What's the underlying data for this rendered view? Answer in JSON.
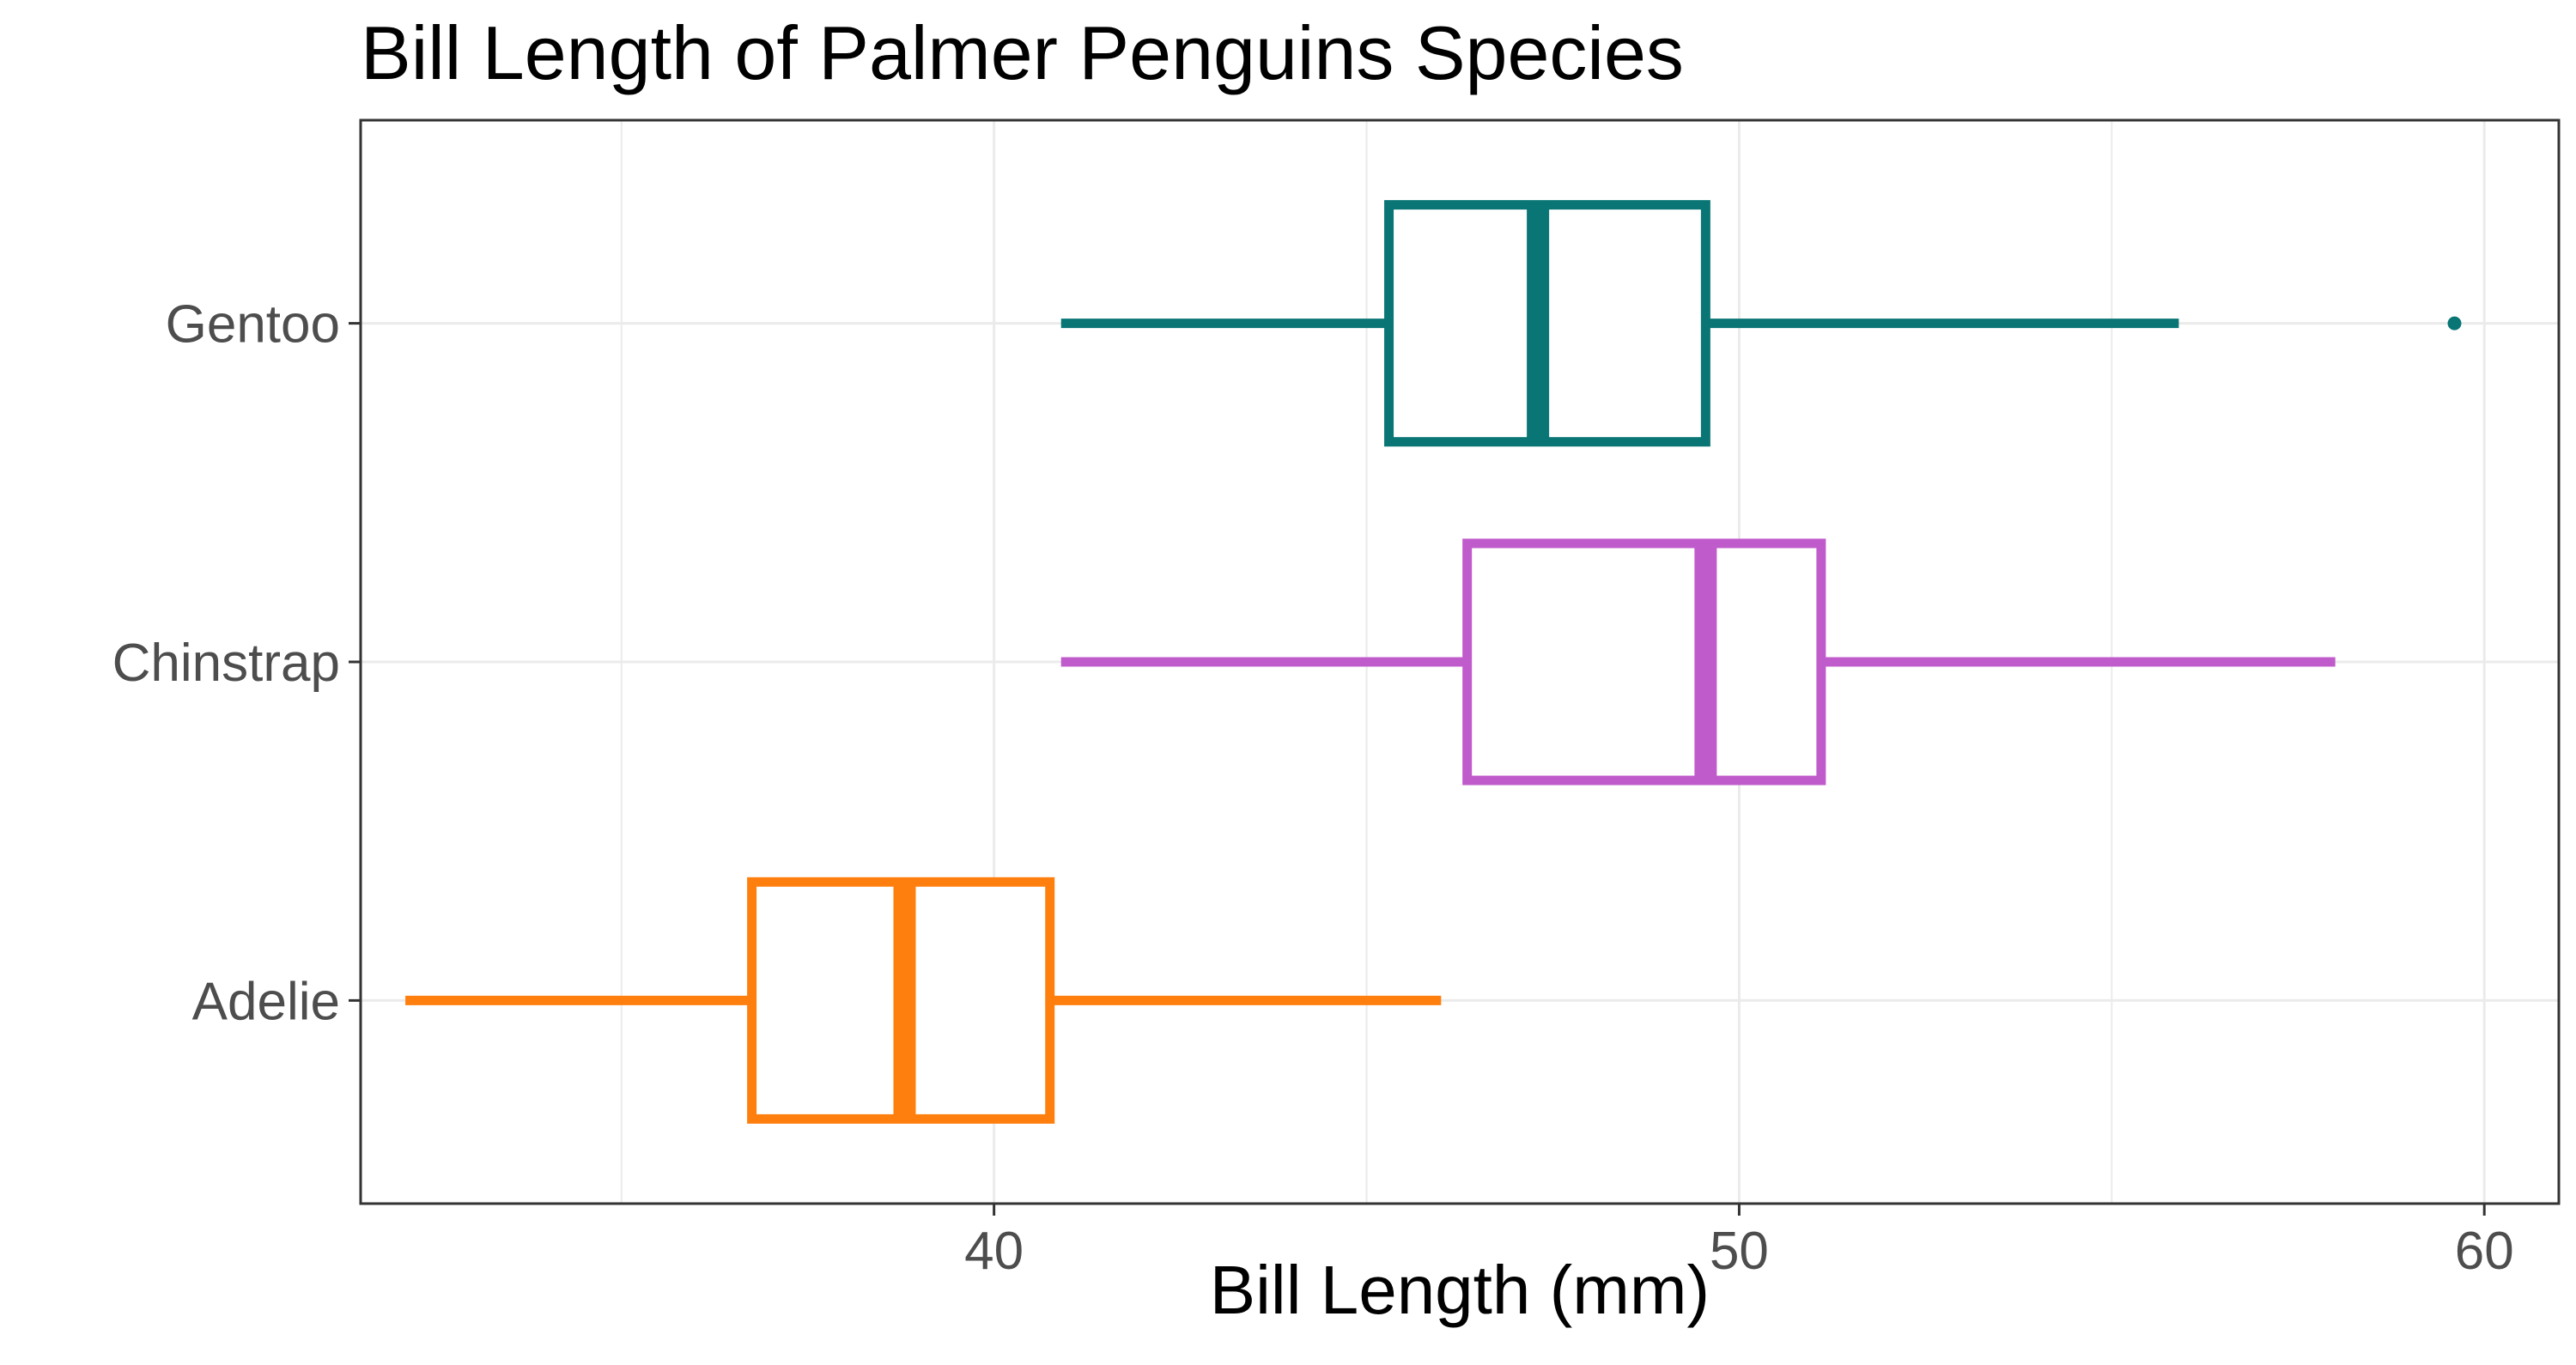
{
  "chart_data": {
    "type": "boxplot",
    "orientation": "horizontal",
    "title": "Bill Length of Palmer Penguins Species",
    "xlabel": "Bill Length (mm)",
    "ylabel": "",
    "xlim": [
      31.5,
      61
    ],
    "xticks": [
      40,
      50,
      60
    ],
    "xtick_labels": [
      "40",
      "50",
      "60"
    ],
    "grid": true,
    "legend": "none",
    "categories": [
      "Adelie",
      "Chinstrap",
      "Gentoo"
    ],
    "series": [
      {
        "category": "Adelie",
        "color": "#FF7F0E",
        "whisker_low": 32.1,
        "q1": 36.75,
        "median": 38.8,
        "q3": 40.75,
        "whisker_high": 46.0,
        "outliers": []
      },
      {
        "category": "Chinstrap",
        "color": "#C05BCB",
        "whisker_low": 40.9,
        "q1": 46.35,
        "median": 49.55,
        "q3": 51.1,
        "whisker_high": 58.0,
        "outliers": []
      },
      {
        "category": "Gentoo",
        "color": "#0A7575",
        "whisker_low": 40.9,
        "q1": 45.3,
        "median": 47.3,
        "q3": 49.55,
        "whisker_high": 55.9,
        "outliers": [
          59.6
        ]
      }
    ]
  }
}
